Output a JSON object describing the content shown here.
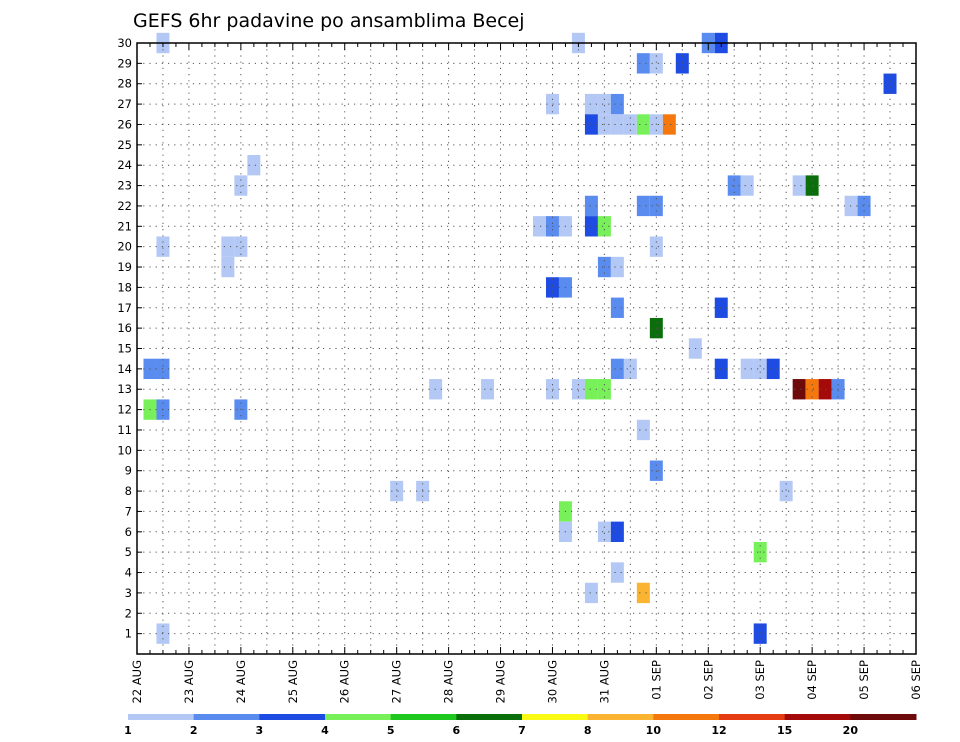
{
  "chart_data": {
    "type": "heatmap",
    "title": "GEFS 6hr padavine po ansamblima Becej",
    "xlabel": "",
    "ylabel": "",
    "x_tick_labels": [
      "22 AUG",
      "23 AUG",
      "24 AUG",
      "25 AUG",
      "26 AUG",
      "27 AUG",
      "28 AUG",
      "29 AUG",
      "30 AUG",
      "31 AUG",
      "01 SEP",
      "02 SEP",
      "03 SEP",
      "04 SEP",
      "05 SEP",
      "06 SEP"
    ],
    "x_range_steps": [
      0,
      60
    ],
    "steps_per_tick": 4,
    "y_tick_labels": [
      "1",
      "2",
      "3",
      "4",
      "5",
      "6",
      "7",
      "8",
      "9",
      "10",
      "11",
      "12",
      "13",
      "14",
      "15",
      "16",
      "17",
      "18",
      "19",
      "20",
      "21",
      "22",
      "23",
      "24",
      "25",
      "26",
      "27",
      "28",
      "29",
      "30"
    ],
    "y_range": [
      0,
      30
    ],
    "grid": true,
    "colorbar": {
      "labels": [
        "1",
        "2",
        "3",
        "4",
        "5",
        "6",
        "7",
        "8",
        "10",
        "12",
        "15",
        "20"
      ],
      "colors": [
        "#b4c8f5",
        "#5a8cf0",
        "#1e4be1",
        "#78f05a",
        "#1ec81e",
        "#0a6e0a",
        "#fafa14",
        "#fab432",
        "#f5780f",
        "#e63c14",
        "#a50a0a",
        "#6e0a0a"
      ]
    },
    "cells": [
      [
        2,
        30,
        1
      ],
      [
        34,
        30,
        1
      ],
      [
        44,
        30,
        2
      ],
      [
        45,
        30,
        3
      ],
      [
        39,
        29,
        2
      ],
      [
        40,
        29,
        1
      ],
      [
        42,
        29,
        3
      ],
      [
        58,
        28,
        3
      ],
      [
        32,
        27,
        1
      ],
      [
        35,
        27,
        1
      ],
      [
        36,
        27,
        1
      ],
      [
        37,
        27,
        2
      ],
      [
        35,
        26,
        3
      ],
      [
        36,
        26,
        1
      ],
      [
        37,
        26,
        1
      ],
      [
        38,
        26,
        1
      ],
      [
        39,
        26,
        4
      ],
      [
        40,
        26,
        1
      ],
      [
        41,
        26,
        9
      ],
      [
        9,
        24,
        1
      ],
      [
        8,
        23,
        1
      ],
      [
        46,
        23,
        2
      ],
      [
        47,
        23,
        1
      ],
      [
        51,
        23,
        1
      ],
      [
        52,
        23,
        6
      ],
      [
        35,
        22,
        2
      ],
      [
        39,
        22,
        2
      ],
      [
        40,
        22,
        2
      ],
      [
        55,
        22,
        1
      ],
      [
        56,
        22,
        2
      ],
      [
        31,
        21,
        1
      ],
      [
        32,
        21,
        2
      ],
      [
        33,
        21,
        1
      ],
      [
        35,
        21,
        3
      ],
      [
        36,
        21,
        4
      ],
      [
        2,
        20,
        1
      ],
      [
        7,
        20,
        1
      ],
      [
        8,
        20,
        1
      ],
      [
        40,
        20,
        1
      ],
      [
        7,
        19,
        1
      ],
      [
        36,
        19,
        2
      ],
      [
        37,
        19,
        1
      ],
      [
        32,
        18,
        3
      ],
      [
        33,
        18,
        2
      ],
      [
        37,
        17,
        2
      ],
      [
        45,
        17,
        3
      ],
      [
        40,
        16,
        6
      ],
      [
        43,
        15,
        1
      ],
      [
        1,
        14,
        2
      ],
      [
        2,
        14,
        2
      ],
      [
        37,
        14,
        2
      ],
      [
        38,
        14,
        1
      ],
      [
        45,
        14,
        3
      ],
      [
        47,
        14,
        1
      ],
      [
        48,
        14,
        1
      ],
      [
        49,
        14,
        3
      ],
      [
        23,
        13,
        1
      ],
      [
        27,
        13,
        1
      ],
      [
        32,
        13,
        1
      ],
      [
        34,
        13,
        1
      ],
      [
        35,
        13,
        4
      ],
      [
        36,
        13,
        4
      ],
      [
        51,
        13,
        12
      ],
      [
        52,
        13,
        9
      ],
      [
        53,
        13,
        11
      ],
      [
        54,
        13,
        2
      ],
      [
        1,
        12,
        4
      ],
      [
        2,
        12,
        2
      ],
      [
        8,
        12,
        2
      ],
      [
        39,
        11,
        1
      ],
      [
        40,
        9,
        2
      ],
      [
        20,
        8,
        1
      ],
      [
        22,
        8,
        1
      ],
      [
        50,
        8,
        1
      ],
      [
        33,
        7,
        4
      ],
      [
        33,
        6,
        1
      ],
      [
        36,
        6,
        1
      ],
      [
        37,
        6,
        3
      ],
      [
        48,
        5,
        4
      ],
      [
        37,
        4,
        1
      ],
      [
        35,
        3,
        1
      ],
      [
        39,
        3,
        8
      ],
      [
        2,
        1,
        1
      ],
      [
        48,
        1,
        3
      ]
    ]
  }
}
